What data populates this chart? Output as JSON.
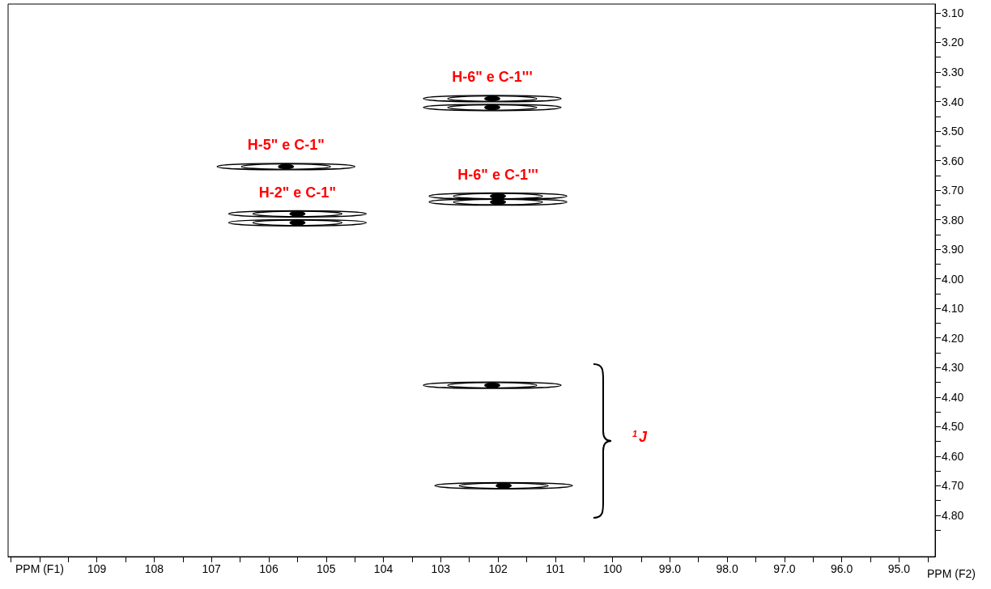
{
  "chart_data": {
    "type": "scatter",
    "ylabel": "PPM (F2)",
    "series": [
      {
        "color": "#000000",
        "x": [
          102.1,
          102.1,
          105.7,
          105.5,
          105.5,
          102.0,
          102.0,
          102.1,
          101.9
        ],
        "values": [
          3.39,
          3.42,
          3.62,
          3.78,
          3.81,
          3.72,
          3.74,
          4.36,
          4.7
        ],
        "value_labels": [
          "H-6\" e C-1'''",
          null,
          "H-5\" e C-1\"",
          "H-2\" e C-1\"",
          null,
          "H-6\" e C-1'''",
          null,
          null,
          null
        ]
      }
    ],
    "xlim": [
      110.55,
      94.37
    ],
    "xticks": [
      {
        "value": 110.5,
        "label": null
      },
      {
        "value": 110,
        "label": "PPM (F1)"
      },
      {
        "value": 109.5,
        "label": null
      },
      109,
      {
        "value": 108.5,
        "label": null
      },
      108,
      {
        "value": 107.5,
        "label": null
      },
      107,
      {
        "value": 106.5,
        "label": null
      },
      106,
      {
        "value": 105.5,
        "label": null
      },
      105,
      {
        "value": 104.5,
        "label": null
      },
      104,
      {
        "value": 103.5,
        "label": null
      },
      103,
      {
        "value": 102.5,
        "label": null
      },
      102,
      {
        "value": 101.5,
        "label": null
      },
      101,
      {
        "value": 100.5,
        "label": null
      },
      100,
      {
        "value": 99.5,
        "label": null
      },
      {
        "value": 99,
        "label": "99.0"
      },
      {
        "value": 98.5,
        "label": null
      },
      {
        "value": 98,
        "label": "98.0"
      },
      {
        "value": 97.5,
        "label": null
      },
      {
        "value": 97,
        "label": "97.0"
      },
      {
        "value": 96.5,
        "label": null
      },
      {
        "value": 96,
        "label": "96.0"
      },
      {
        "value": 95.5,
        "label": null
      },
      {
        "value": 95,
        "label": "95.0"
      },
      {
        "value": 94.5,
        "label": null
      }
    ],
    "ylim": [
      4.94,
      3.07
    ],
    "yticks": [
      {
        "value": 3.1,
        "label": "3.10"
      },
      {
        "value": 3.15,
        "label": null
      },
      {
        "value": 3.2,
        "label": "3.20"
      },
      {
        "value": 3.25,
        "label": null
      },
      {
        "value": 3.3,
        "label": "3.30"
      },
      {
        "value": 3.35,
        "label": null
      },
      {
        "value": 3.4,
        "label": "3.40"
      },
      {
        "value": 3.45,
        "label": null
      },
      {
        "value": 3.5,
        "label": "3.50"
      },
      {
        "value": 3.55,
        "label": null
      },
      {
        "value": 3.6,
        "label": "3.60"
      },
      {
        "value": 3.65,
        "label": null
      },
      {
        "value": 3.7,
        "label": "3.70"
      },
      {
        "value": 3.75,
        "label": null
      },
      {
        "value": 3.8,
        "label": "3.80"
      },
      {
        "value": 3.85,
        "label": null
      },
      {
        "value": 3.9,
        "label": "3.90"
      },
      {
        "value": 3.95,
        "label": null
      },
      {
        "value": 4.0,
        "label": "4.00"
      },
      {
        "value": 4.05,
        "label": null
      },
      {
        "value": 4.1,
        "label": "4.10"
      },
      {
        "value": 4.15,
        "label": null
      },
      {
        "value": 4.2,
        "label": "4.20"
      },
      {
        "value": 4.25,
        "label": null
      },
      {
        "value": 4.3,
        "label": "4.30"
      },
      {
        "value": 4.35,
        "label": null
      },
      {
        "value": 4.4,
        "label": "4.40"
      },
      {
        "value": 4.45,
        "label": null
      },
      {
        "value": 4.5,
        "label": "4.50"
      },
      {
        "value": 4.55,
        "label": null
      },
      {
        "value": 4.6,
        "label": "4.60"
      },
      {
        "value": 4.65,
        "label": null
      },
      {
        "value": 4.7,
        "label": "4.70"
      },
      {
        "value": 4.75,
        "label": null
      },
      {
        "value": 4.8,
        "label": "4.80"
      },
      {
        "value": 4.85,
        "label": null
      }
    ],
    "annotations": [
      "$^{1}$J"
    ]
  }
}
